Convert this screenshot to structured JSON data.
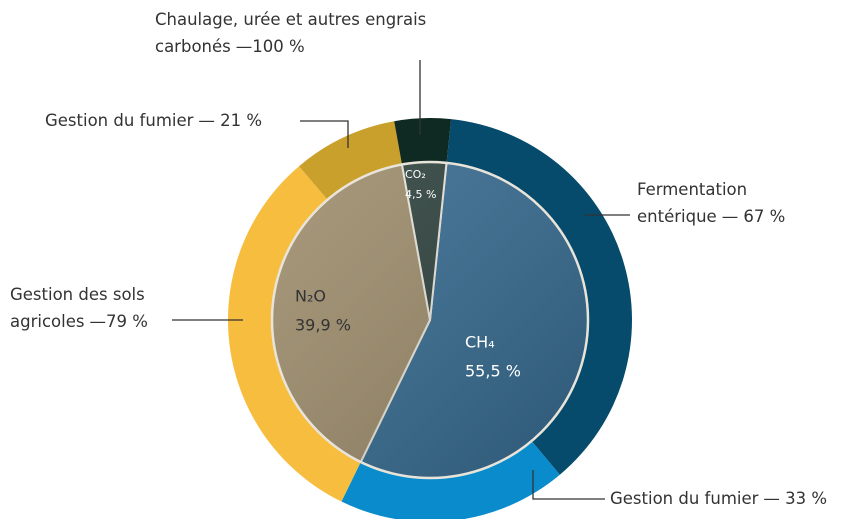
{
  "chart_data": {
    "type": "sunburst",
    "series": [
      {
        "name": "CH₄",
        "value": 55.5,
        "value_label": "55,5 %",
        "color": "#35698f",
        "children": {
          "categories": [
            "Fermentation entérique",
            "Gestion du fumier"
          ],
          "values": [
            67,
            33
          ],
          "value_labels": [
            "— 67 %",
            "— 33 %"
          ],
          "colors": [
            "#064a6c",
            "#0a8ccc"
          ]
        }
      },
      {
        "name": "N₂O",
        "value": 39.9,
        "value_label": "39,9 %",
        "color": "#9c8b6a",
        "children": {
          "categories": [
            "Gestion des sols agricoles",
            "Gestion du fumier"
          ],
          "values": [
            79,
            21
          ],
          "value_labels": [
            "—79 %",
            "— 21 %"
          ],
          "colors": [
            "#f7bd3e",
            "#c9a02b"
          ]
        }
      },
      {
        "name": "CO₂",
        "value": 4.5,
        "value_label": "4,5 %",
        "color": "#2c403b",
        "children": {
          "categories": [
            "Chaulage, urée et autres engrais carbonés"
          ],
          "values": [
            100
          ],
          "value_labels": [
            "—100 %"
          ],
          "colors": [
            "#0f2923"
          ]
        }
      }
    ]
  }
}
